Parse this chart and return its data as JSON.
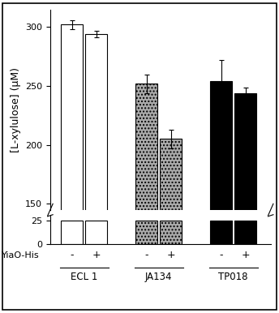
{
  "groups": [
    "ECL 1",
    "JA134",
    "TP018"
  ],
  "bar_values": [
    [
      302,
      294
    ],
    [
      252,
      205
    ],
    [
      254,
      244
    ]
  ],
  "bar_errors": [
    [
      4,
      3
    ],
    [
      8,
      8
    ],
    [
      18,
      5
    ]
  ],
  "bar_colors_main": [
    "white",
    "white",
    "#aaaaaa",
    "#aaaaaa",
    "black",
    "black"
  ],
  "bar_edgecolors": [
    "black",
    "black",
    "black",
    "black",
    "black",
    "black"
  ],
  "bar_hatches": [
    null,
    null,
    "....",
    "....",
    null,
    null
  ],
  "yiao_labels": [
    "-",
    "+",
    "-",
    "+",
    "-",
    "+"
  ],
  "ylabel": "[L-xylulose] (μM)",
  "yticks_main": [
    150,
    200,
    250,
    300
  ],
  "yticks_small": [
    0,
    25
  ],
  "ylim_main": [
    145,
    315
  ],
  "ylim_small": [
    0,
    30
  ],
  "xlim": [
    0.5,
    3.75
  ],
  "group_centers": [
    1.0,
    2.1,
    3.2
  ],
  "bar_width": 0.32,
  "bar_gap": 0.04,
  "background_color": "#ffffff"
}
